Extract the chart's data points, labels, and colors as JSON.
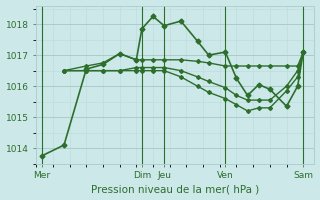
{
  "xlabel": "Pression niveau de la mer( hPa )",
  "bg_color": "#cce8e8",
  "grid_color_major": "#aacccc",
  "grid_color_minor": "#c0dddd",
  "line_color": "#2d6e2d",
  "xlim": [
    0,
    100
  ],
  "ylim": [
    1013.5,
    1018.6
  ],
  "yticks": [
    1014,
    1015,
    1016,
    1017,
    1018
  ],
  "xtick_labels": [
    "Mer",
    "Dim",
    "Jeu",
    "Ven",
    "Sam"
  ],
  "xtick_positions": [
    2,
    38,
    46,
    68,
    96
  ],
  "vlines": [
    2,
    38,
    46,
    68,
    96
  ],
  "lines": [
    {
      "x": [
        2,
        10,
        18,
        24,
        30,
        36,
        38,
        42,
        46,
        52,
        58,
        62,
        68,
        72,
        76,
        80,
        84,
        90,
        94,
        96
      ],
      "y": [
        1013.75,
        1014.1,
        1016.55,
        1016.7,
        1017.05,
        1016.85,
        1017.85,
        1018.25,
        1017.95,
        1018.1,
        1017.45,
        1017.0,
        1017.1,
        1016.25,
        1015.7,
        1016.05,
        1015.9,
        1015.35,
        1016.0,
        1017.1
      ],
      "ms": 2.5,
      "lw": 1.2
    },
    {
      "x": [
        10,
        18,
        24,
        30,
        36,
        38,
        42,
        46,
        52,
        58,
        62,
        68,
        72,
        76,
        80,
        84,
        90,
        94,
        96
      ],
      "y": [
        1016.5,
        1016.65,
        1016.75,
        1017.05,
        1016.85,
        1016.85,
        1016.85,
        1016.85,
        1016.85,
        1016.8,
        1016.75,
        1016.65,
        1016.65,
        1016.65,
        1016.65,
        1016.65,
        1016.65,
        1016.65,
        1017.1
      ],
      "ms": 2.0,
      "lw": 1.0
    },
    {
      "x": [
        10,
        18,
        24,
        30,
        36,
        38,
        42,
        46,
        52,
        58,
        62,
        68,
        72,
        76,
        80,
        84,
        90,
        94,
        96
      ],
      "y": [
        1016.5,
        1016.5,
        1016.5,
        1016.5,
        1016.6,
        1016.6,
        1016.6,
        1016.6,
        1016.5,
        1016.3,
        1016.15,
        1015.95,
        1015.7,
        1015.55,
        1015.55,
        1015.55,
        1016.0,
        1016.5,
        1017.1
      ],
      "ms": 2.0,
      "lw": 1.0
    },
    {
      "x": [
        10,
        18,
        24,
        30,
        36,
        38,
        42,
        46,
        52,
        58,
        62,
        68,
        72,
        76,
        80,
        84,
        90,
        94,
        96
      ],
      "y": [
        1016.5,
        1016.5,
        1016.5,
        1016.5,
        1016.5,
        1016.5,
        1016.5,
        1016.5,
        1016.3,
        1016.0,
        1015.8,
        1015.6,
        1015.4,
        1015.2,
        1015.3,
        1015.3,
        1015.85,
        1016.3,
        1017.1
      ],
      "ms": 2.0,
      "lw": 1.0
    }
  ],
  "vline_color": "#2d6e2d",
  "vline_lw": 0.8
}
